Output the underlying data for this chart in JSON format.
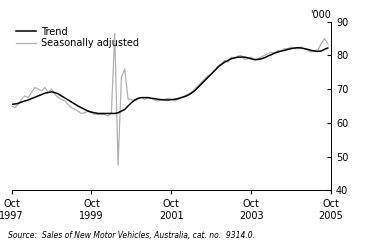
{
  "ylabel_right": "'000",
  "source_text": "Source:  Sales of New Motor Vehicles, Australia, cat. no.  9314.0.",
  "ylim": [
    40,
    90
  ],
  "yticks": [
    40,
    50,
    60,
    70,
    80,
    90
  ],
  "x_tick_pos": [
    0,
    24,
    48,
    72,
    96
  ],
  "x_tick_labels": [
    "Oct\n1997",
    "Oct\n1999",
    "Oct\n2001",
    "Oct\n2003",
    "Oct\n2005"
  ],
  "trend_color": "#000000",
  "seas_color": "#b0b0b0",
  "legend_trend": "Trend",
  "legend_seas": "Seasonally adjusted",
  "trend": [
    65.5,
    65.6,
    65.8,
    66.2,
    66.5,
    66.8,
    67.2,
    67.6,
    68.0,
    68.4,
    68.8,
    69.0,
    69.2,
    69.0,
    68.6,
    68.0,
    67.4,
    66.8,
    66.2,
    65.6,
    65.0,
    64.5,
    64.0,
    63.5,
    63.2,
    63.0,
    62.8,
    62.8,
    62.8,
    62.8,
    62.8,
    62.8,
    63.0,
    63.5,
    64.0,
    65.0,
    66.0,
    66.8,
    67.3,
    67.5,
    67.5,
    67.5,
    67.3,
    67.2,
    67.0,
    66.9,
    66.8,
    66.8,
    66.9,
    67.0,
    67.2,
    67.5,
    67.8,
    68.2,
    68.8,
    69.5,
    70.5,
    71.5,
    72.5,
    73.5,
    74.5,
    75.5,
    76.5,
    77.3,
    78.0,
    78.5,
    79.0,
    79.3,
    79.5,
    79.5,
    79.5,
    79.3,
    79.0,
    78.8,
    78.8,
    79.0,
    79.3,
    79.8,
    80.2,
    80.7,
    81.0,
    81.3,
    81.5,
    81.8,
    82.0,
    82.2,
    82.3,
    82.2,
    82.0,
    81.8,
    81.5,
    81.3,
    81.2,
    81.3,
    81.8,
    82.2
  ],
  "seas": [
    65.0,
    64.5,
    65.5,
    67.0,
    68.0,
    67.5,
    69.0,
    70.5,
    70.0,
    69.5,
    70.5,
    69.0,
    70.0,
    68.5,
    67.5,
    67.0,
    66.5,
    65.5,
    64.5,
    64.0,
    63.5,
    62.8,
    63.0,
    63.5,
    63.0,
    62.5,
    62.5,
    62.5,
    62.5,
    62.0,
    63.0,
    86.5,
    47.5,
    73.5,
    76.0,
    67.0,
    67.0,
    66.5,
    67.0,
    67.5,
    67.0,
    67.5,
    67.2,
    66.8,
    66.5,
    66.8,
    67.0,
    67.3,
    67.0,
    66.5,
    67.0,
    67.5,
    68.0,
    68.5,
    69.0,
    70.0,
    71.0,
    72.0,
    73.0,
    74.0,
    74.5,
    75.5,
    76.8,
    77.5,
    78.5,
    78.0,
    79.5,
    79.0,
    79.8,
    80.0,
    78.8,
    79.0,
    79.5,
    78.5,
    79.0,
    79.5,
    80.0,
    80.5,
    81.0,
    80.5,
    81.5,
    81.3,
    82.0,
    82.0,
    82.5,
    82.0,
    82.0,
    82.5,
    82.0,
    81.5,
    81.0,
    81.5,
    81.5,
    83.5,
    85.0,
    83.5
  ]
}
